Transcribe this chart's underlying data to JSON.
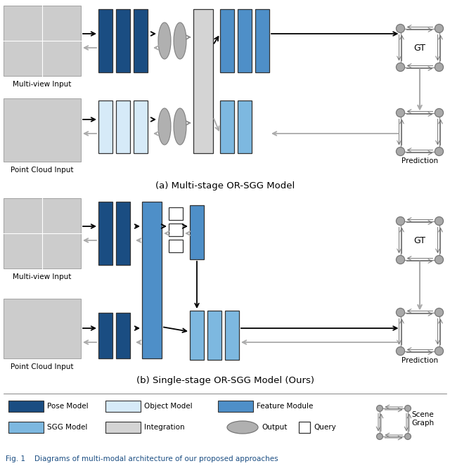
{
  "fig_width": 6.4,
  "fig_height": 6.73,
  "bg_color": "#ffffff",
  "dark_blue": "#1a4d82",
  "mid_blue": "#4e8fc8",
  "light_blue": "#7db8e0",
  "very_light_blue": "#d6eaf8",
  "gray_fill": "#b0b0b0",
  "light_gray": "#d4d4d4",
  "node_gray": "#a8a8a8",
  "title_a": "(a) Multi-stage OR-SGG Model",
  "title_b": "(b) Single-stage OR-SGG Model (Ours)",
  "caption": "Fig. 1    Diagrams of multi-modal architecture of our proposed approaches"
}
